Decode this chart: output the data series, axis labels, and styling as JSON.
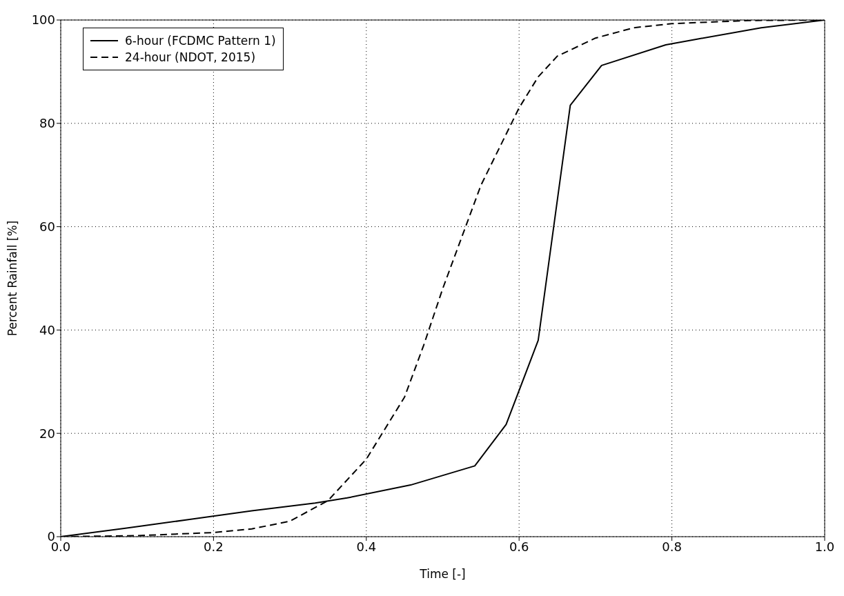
{
  "chart_data": {
    "type": "line",
    "xlabel": "Time [-]",
    "ylabel": "Percent Rainfall [%]",
    "xlim": [
      0,
      1
    ],
    "xticks": [
      {
        "value": 0,
        "label": "0.0"
      },
      {
        "value": 0.2,
        "label": "0.2"
      },
      {
        "value": 0.4,
        "label": "0.4"
      },
      {
        "value": 0.6,
        "label": "0.6"
      },
      {
        "value": 0.8,
        "label": "0.8"
      },
      {
        "value": 1,
        "label": "1.0"
      }
    ],
    "ylim": [
      0,
      100
    ],
    "yticks": [
      0,
      20,
      40,
      60,
      80,
      100
    ],
    "grid": true,
    "legend": "top left",
    "marker": "none",
    "series": [
      {
        "name": "6-hour (FCDMC Pattern 1)",
        "color": "#000000",
        "line_style": "solid",
        "x": [
          0,
          0.083,
          0.167,
          0.25,
          0.333,
          0.375,
          0.458,
          0.542,
          0.583,
          0.625,
          0.667,
          0.708,
          0.792,
          0.833,
          0.917,
          1
        ],
        "values": [
          0,
          1.6,
          3.3,
          5,
          6.5,
          7.5,
          10,
          13.7,
          21.7,
          38,
          83.5,
          91.2,
          95.2,
          96.3,
          98.5,
          100
        ]
      },
      {
        "name": "24-hour (NDOT, 2015)",
        "color": "#000000",
        "line_style": "dashed",
        "x": [
          0,
          0.1,
          0.2,
          0.25,
          0.3,
          0.35,
          0.4,
          0.45,
          0.475,
          0.5,
          0.55,
          0.6,
          0.625,
          0.65,
          0.7,
          0.75,
          0.8,
          0.9,
          1
        ],
        "values": [
          0,
          0.2,
          0.8,
          1.5,
          3,
          7,
          15,
          27,
          37,
          48,
          68,
          83,
          89,
          93,
          96.5,
          98.5,
          99.3,
          99.9,
          100
        ]
      }
    ]
  }
}
